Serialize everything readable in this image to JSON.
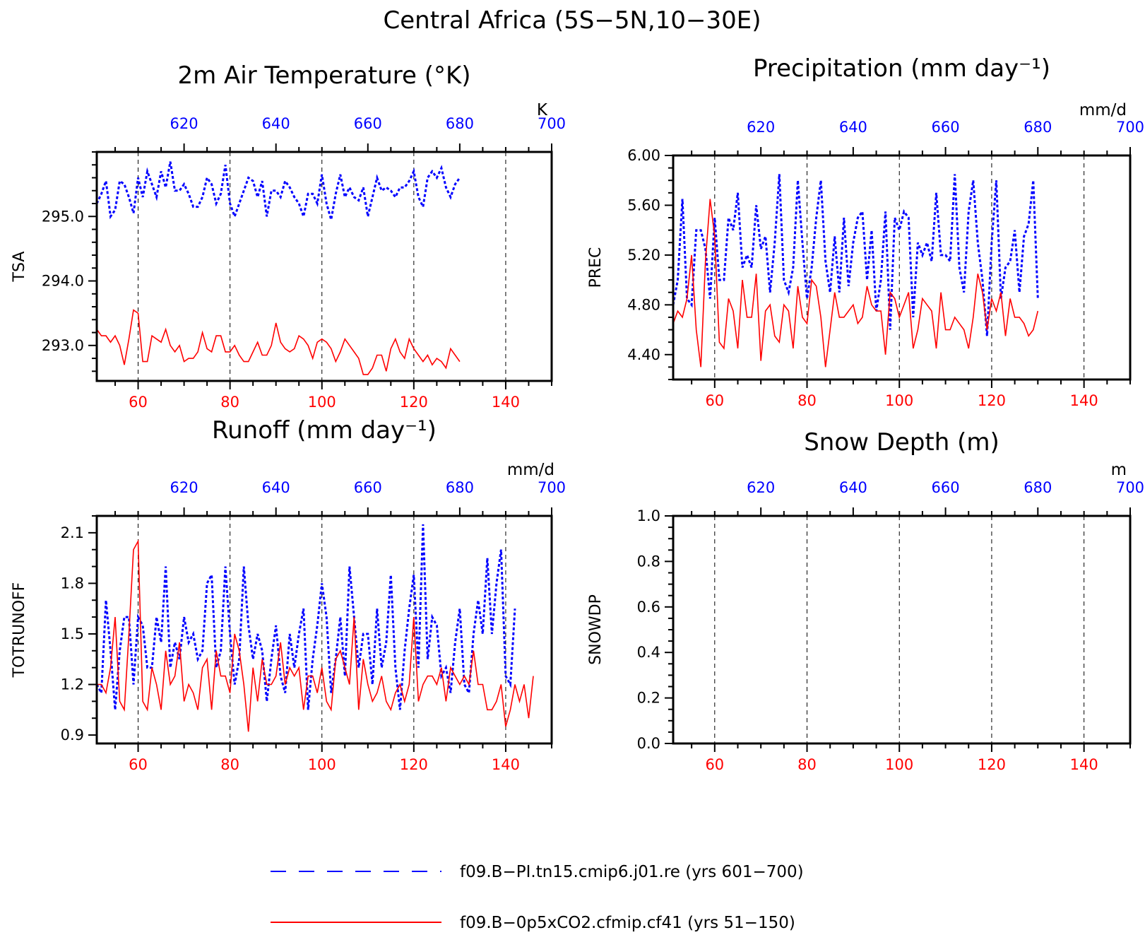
{
  "title": "Central Africa (5S−5N,10−30E)",
  "colors": {
    "series_a": "#0000ff",
    "series_b": "#ff0000"
  },
  "legend": [
    {
      "label": "f09.B−PI.tn15.cmip6.j01.re (yrs 601−700)",
      "style": "dashed"
    },
    {
      "label": "f09.B−0p5xCO2.cfmip.cf41 (yrs 51−150)",
      "style": "solid"
    }
  ],
  "chart_data": [
    {
      "type": "line",
      "title": "2m Air Temperature (°K)",
      "ylabel": "TSA",
      "unit": "K",
      "grid": "vertical dashed",
      "xlim": [
        51,
        150
      ],
      "xticks": [
        60,
        80,
        100,
        120,
        140
      ],
      "x2lim": [
        601,
        700
      ],
      "x2ticks": [
        620,
        640,
        660,
        680,
        700
      ],
      "ylim": [
        292.45,
        296.0
      ],
      "yticks": [
        {
          "v": 293.0,
          "t": "293.0"
        },
        {
          "v": 294.0,
          "t": "294.0"
        },
        {
          "v": 295.0,
          "t": "295.0"
        }
      ],
      "yminor_step": 0.2,
      "series": [
        {
          "name": "f09.B−PI.tn15.cmip6.j01.re (yrs 601−700)",
          "axis": "top",
          "style": "dashed",
          "values": [
            295.2,
            295.35,
            295.55,
            295.0,
            295.1,
            295.55,
            295.5,
            295.3,
            295.05,
            295.6,
            295.3,
            295.7,
            295.5,
            295.3,
            295.7,
            295.45,
            295.85,
            295.4,
            295.4,
            295.5,
            295.35,
            295.15,
            295.15,
            295.3,
            295.6,
            295.5,
            295.2,
            295.35,
            295.8,
            295.2,
            295.0,
            295.2,
            295.4,
            295.6,
            295.55,
            295.3,
            295.55,
            295.0,
            295.4,
            295.4,
            295.3,
            295.55,
            295.45,
            295.3,
            295.2,
            295.0,
            295.35,
            295.35,
            295.2,
            295.65,
            295.2,
            294.95,
            295.35,
            295.65,
            295.3,
            295.45,
            295.3,
            295.25,
            295.45,
            295.0,
            295.3,
            295.6,
            295.4,
            295.45,
            295.4,
            295.3,
            295.45,
            295.45,
            295.55,
            295.7,
            295.3,
            295.15,
            295.6,
            295.7,
            295.6,
            295.75,
            295.45,
            295.3,
            295.5,
            295.6
          ]
        },
        {
          "name": "f09.B−0p5xCO2.cfmip.cf41 (yrs 51−150)",
          "axis": "bottom",
          "style": "solid",
          "values": [
            293.25,
            293.15,
            293.15,
            293.05,
            293.15,
            293.0,
            292.7,
            293.1,
            293.55,
            293.5,
            292.75,
            292.75,
            293.15,
            293.1,
            293.05,
            293.25,
            293.0,
            292.9,
            293.0,
            292.75,
            292.8,
            292.8,
            292.9,
            293.2,
            292.95,
            292.9,
            293.15,
            293.15,
            292.9,
            292.9,
            293.0,
            292.85,
            292.75,
            292.75,
            292.9,
            293.05,
            292.85,
            292.85,
            293.0,
            293.35,
            293.05,
            292.95,
            292.9,
            292.95,
            293.15,
            293.1,
            293.0,
            292.8,
            293.05,
            293.1,
            293.05,
            292.95,
            292.75,
            292.9,
            293.1,
            293.0,
            292.9,
            292.8,
            292.55,
            292.55,
            292.65,
            292.85,
            292.85,
            292.6,
            292.95,
            293.1,
            292.9,
            292.8,
            293.1,
            292.95,
            292.85,
            292.75,
            292.85,
            292.7,
            292.8,
            292.75,
            292.65,
            292.95,
            292.85,
            292.75
          ]
        }
      ]
    },
    {
      "type": "line",
      "title": "Precipitation (mm day⁻¹)",
      "ylabel": "PREC",
      "unit": "mm/d",
      "grid": "vertical dashed",
      "xlim": [
        51,
        150
      ],
      "xticks": [
        60,
        80,
        100,
        120,
        140
      ],
      "x2lim": [
        601,
        700
      ],
      "x2ticks": [
        620,
        640,
        660,
        680,
        700
      ],
      "ylim": [
        4.2,
        6.0
      ],
      "yticks": [
        {
          "v": 4.4,
          "t": "4.40"
        },
        {
          "v": 4.8,
          "t": "4.80"
        },
        {
          "v": 5.2,
          "t": "5.20"
        },
        {
          "v": 5.6,
          "t": "5.60"
        },
        {
          "v": 6.0,
          "t": "6.00"
        }
      ],
      "yminor_step": 0.1,
      "series": [
        {
          "name": "f09.B−PI.tn15.cmip6.j01.re (yrs 601−700)",
          "axis": "top",
          "style": "dashed",
          "values": [
            4.8,
            5.0,
            5.65,
            4.85,
            4.8,
            5.4,
            5.4,
            5.25,
            4.85,
            5.5,
            5.0,
            5.0,
            5.5,
            5.4,
            5.7,
            5.1,
            5.2,
            5.1,
            5.6,
            5.25,
            5.35,
            4.9,
            5.3,
            5.85,
            5.0,
            4.9,
            5.1,
            5.8,
            5.3,
            4.85,
            5.1,
            5.5,
            5.8,
            5.15,
            4.9,
            5.35,
            4.9,
            5.5,
            4.95,
            5.3,
            5.5,
            5.55,
            5.0,
            5.4,
            4.75,
            5.0,
            5.55,
            4.6,
            5.5,
            5.4,
            5.55,
            5.5,
            4.7,
            5.3,
            5.2,
            5.3,
            5.15,
            5.7,
            5.2,
            5.2,
            5.15,
            5.85,
            5.1,
            4.9,
            5.55,
            5.8,
            5.3,
            5.0,
            4.55,
            5.3,
            5.8,
            4.85,
            5.1,
            5.15,
            5.4,
            4.9,
            5.35,
            5.45,
            5.8,
            4.85
          ]
        },
        {
          "name": "f09.B−0p5xCO2.cfmip.cf41 (yrs 51−150)",
          "axis": "bottom",
          "style": "solid",
          "values": [
            4.65,
            4.75,
            4.7,
            4.85,
            5.2,
            4.6,
            4.3,
            5.15,
            5.65,
            5.35,
            4.5,
            4.45,
            4.85,
            4.75,
            4.45,
            5.0,
            4.7,
            4.7,
            5.05,
            4.35,
            4.75,
            4.8,
            4.55,
            4.5,
            4.8,
            4.75,
            4.45,
            4.95,
            4.7,
            4.65,
            5.0,
            4.95,
            4.7,
            4.3,
            4.6,
            4.9,
            4.7,
            4.7,
            4.75,
            4.8,
            4.65,
            4.7,
            4.95,
            4.8,
            4.75,
            4.75,
            4.4,
            4.9,
            4.85,
            4.7,
            4.8,
            4.9,
            4.45,
            4.6,
            4.85,
            4.8,
            4.75,
            4.45,
            4.9,
            4.6,
            4.6,
            4.7,
            4.65,
            4.6,
            4.45,
            4.7,
            5.05,
            4.9,
            4.6,
            4.85,
            4.75,
            4.9,
            4.55,
            4.85,
            4.7,
            4.7,
            4.65,
            4.55,
            4.6,
            4.75
          ]
        }
      ]
    },
    {
      "type": "line",
      "title": "Runoff (mm day⁻¹)",
      "ylabel": "TOTRUNOFF",
      "unit": "mm/d",
      "grid": "vertical dashed",
      "xlim": [
        51,
        150
      ],
      "xticks": [
        60,
        80,
        100,
        120,
        140
      ],
      "x2lim": [
        601,
        700
      ],
      "x2ticks": [
        620,
        640,
        660,
        680,
        700
      ],
      "ylim": [
        0.85,
        2.2
      ],
      "yticks": [
        {
          "v": 0.9,
          "t": "0.9"
        },
        {
          "v": 1.2,
          "t": "1.2"
        },
        {
          "v": 1.5,
          "t": "1.5"
        },
        {
          "v": 1.8,
          "t": "1.8"
        },
        {
          "v": 2.1,
          "t": "2.1"
        }
      ],
      "yminor_step": 0.1,
      "series": [
        {
          "name": "f09.B−PI.tn15.cmip6.j01.re (yrs 601−700)",
          "axis": "top",
          "style": "dashed",
          "values": [
            1.2,
            1.15,
            1.7,
            1.4,
            1.05,
            1.4,
            1.6,
            1.6,
            1.2,
            1.6,
            1.55,
            1.3,
            1.3,
            1.6,
            1.45,
            1.9,
            1.3,
            1.45,
            1.35,
            1.6,
            1.45,
            1.5,
            1.35,
            1.4,
            1.8,
            1.85,
            1.3,
            1.4,
            1.9,
            1.5,
            1.2,
            1.35,
            1.9,
            1.55,
            1.35,
            1.5,
            1.4,
            1.1,
            1.35,
            1.55,
            1.25,
            1.15,
            1.5,
            1.3,
            1.5,
            1.65,
            1.05,
            1.35,
            1.55,
            1.8,
            1.6,
            1.15,
            1.35,
            1.6,
            1.25,
            1.9,
            1.6,
            1.3,
            1.5,
            1.5,
            1.2,
            1.65,
            1.3,
            1.45,
            1.85,
            1.3,
            1.05,
            1.4,
            1.65,
            1.85,
            1.3,
            2.15,
            1.35,
            1.6,
            1.55,
            1.25,
            1.3,
            1.15,
            1.45,
            1.65,
            1.2,
            1.15,
            1.5,
            1.7,
            1.5,
            1.95,
            1.5,
            1.8,
            2.0,
            1.25,
            1.2,
            1.65
          ]
        },
        {
          "name": "f09.B−0p5xCO2.cfmip.cf41 (yrs 51−150)",
          "axis": "bottom",
          "style": "solid",
          "values": [
            1.2,
            1.2,
            1.15,
            1.3,
            1.6,
            1.1,
            1.05,
            1.5,
            2.0,
            2.05,
            1.1,
            1.05,
            1.3,
            1.2,
            1.05,
            1.4,
            1.2,
            1.25,
            1.45,
            1.1,
            1.2,
            1.15,
            1.05,
            1.3,
            1.35,
            1.05,
            1.4,
            1.25,
            1.25,
            1.15,
            1.5,
            1.4,
            1.2,
            0.92,
            1.3,
            1.1,
            1.35,
            1.2,
            1.2,
            1.25,
            1.45,
            1.2,
            1.3,
            1.25,
            1.3,
            1.05,
            1.25,
            1.25,
            1.15,
            1.3,
            1.1,
            1.05,
            1.35,
            1.4,
            1.3,
            1.2,
            1.6,
            1.05,
            1.35,
            1.2,
            1.1,
            1.15,
            1.25,
            1.1,
            1.05,
            1.15,
            1.2,
            1.1,
            1.2,
            1.6,
            1.1,
            1.2,
            1.25,
            1.25,
            1.2,
            1.3,
            1.1,
            1.3,
            1.25,
            1.2,
            1.25,
            1.2,
            1.4,
            1.2,
            1.2,
            1.05,
            1.05,
            1.1,
            1.2,
            0.95,
            1.05,
            1.2,
            1.1,
            1.2,
            1.0,
            1.25
          ]
        }
      ]
    },
    {
      "type": "line",
      "title": "Snow Depth (m)",
      "ylabel": "SNOWDP",
      "unit": "m",
      "grid": "vertical dashed",
      "xlim": [
        51,
        150
      ],
      "xticks": [
        60,
        80,
        100,
        120,
        140
      ],
      "x2lim": [
        601,
        700
      ],
      "x2ticks": [
        620,
        640,
        660,
        680,
        700
      ],
      "ylim": [
        0.0,
        1.0
      ],
      "yticks": [
        {
          "v": 0.0,
          "t": "0.0"
        },
        {
          "v": 0.2,
          "t": "0.2"
        },
        {
          "v": 0.4,
          "t": "0.4"
        },
        {
          "v": 0.6,
          "t": "0.6"
        },
        {
          "v": 0.8,
          "t": "0.8"
        },
        {
          "v": 1.0,
          "t": "1.0"
        }
      ],
      "yminor_step": 0.05,
      "series": []
    }
  ]
}
